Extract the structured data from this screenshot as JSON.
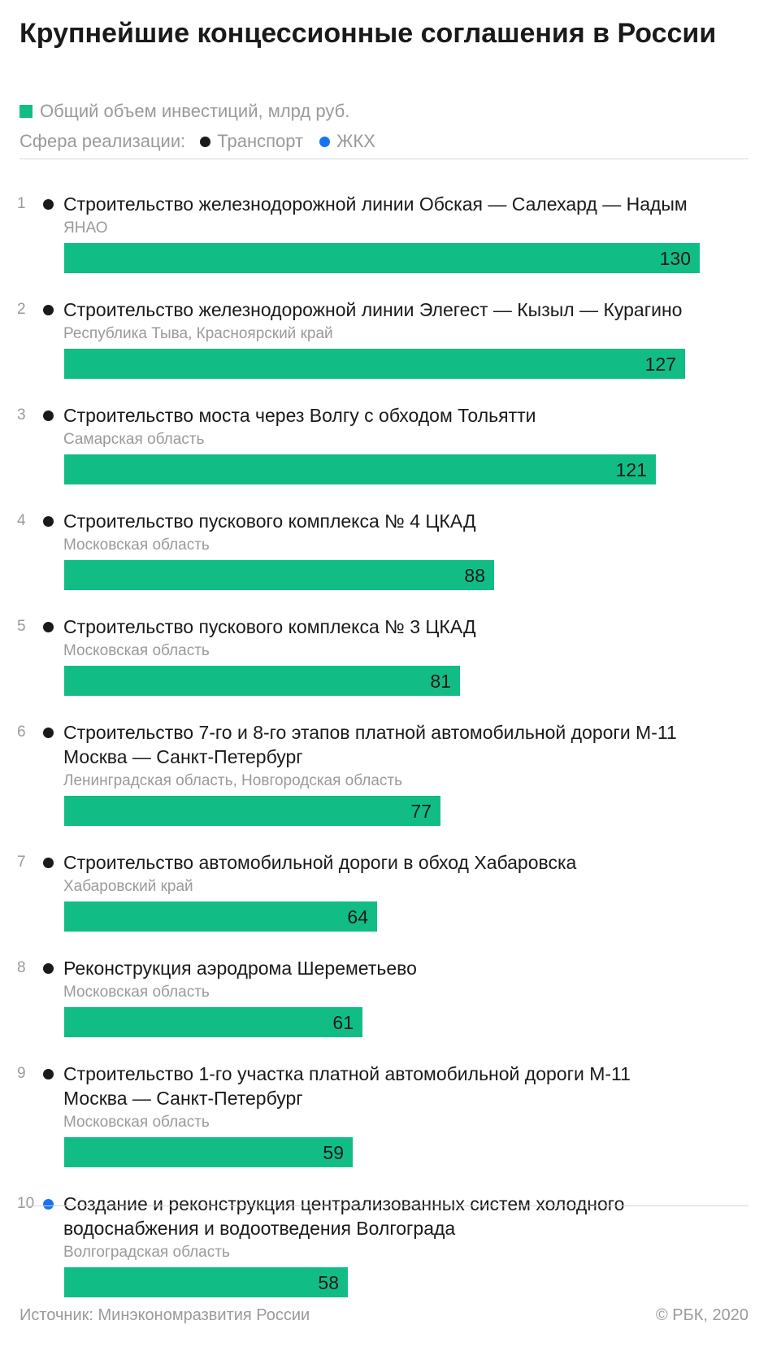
{
  "title": "Крупнейшие концессионные соглашения в России",
  "legend": {
    "measure": "Общий объем инвестиций, млрд руб.",
    "sphere_label": "Сфера реализации:",
    "categories": [
      {
        "label": "Транспорт",
        "color": "#1a1a1a"
      },
      {
        "label": "ЖКХ",
        "color": "#1a73f0"
      }
    ]
  },
  "bar_color": "#12bd85",
  "chart_data": {
    "type": "bar",
    "orientation": "horizontal",
    "value_label": "Общий объем инвестиций, млрд руб.",
    "items": [
      {
        "rank": "1",
        "name": "Строительство железнодорожной линии Обская — Салехард — Надым",
        "region": "ЯНАО",
        "value": 130,
        "sphere": "Транспорт"
      },
      {
        "rank": "2",
        "name": "Строительство железнодорожной линии Элегест — Кызыл — Курагино",
        "region": "Республика Тыва, Красноярский край",
        "value": 127,
        "sphere": "Транспорт"
      },
      {
        "rank": "3",
        "name": "Строительство моста через Волгу с обходом Тольятти",
        "region": "Самарская область",
        "value": 121,
        "sphere": "Транспорт"
      },
      {
        "rank": "4",
        "name": "Строительство пускового комплекса № 4 ЦКАД",
        "region": "Московская область",
        "value": 88,
        "sphere": "Транспорт"
      },
      {
        "rank": "5",
        "name": "Строительство пускового комплекса № 3 ЦКАД",
        "region": "Московская область",
        "value": 81,
        "sphere": "Транспорт"
      },
      {
        "rank": "6",
        "name": "Строительство 7-го и 8-го этапов платной автомобильной дороги М-11 Москва — Санкт-Петербург",
        "region": "Ленинградская область, Новгородская область",
        "value": 77,
        "sphere": "Транспорт"
      },
      {
        "rank": "7",
        "name": "Строительство автомобильной дороги в обход Хабаровска",
        "region": "Хабаровский край",
        "value": 64,
        "sphere": "Транспорт"
      },
      {
        "rank": "8",
        "name": "Реконструкция аэродрома Шереметьево",
        "region": "Московская область",
        "value": 61,
        "sphere": "Транспорт"
      },
      {
        "rank": "9",
        "name": "Строительство 1-го участка платной автомобильной дороги М-11 Москва — Санкт-Петербург",
        "region": "Московская область",
        "value": 59,
        "sphere": "Транспорт"
      },
      {
        "rank": "10",
        "name": "Создание и реконструкция централизованных систем холодного водоснабжения и водоотведения Волгограда",
        "region": "Волгоградская область",
        "value": 58,
        "sphere": "ЖКХ"
      }
    ]
  },
  "footer": {
    "source": "Источник: Минэкономразвития России",
    "copyright": "© РБК, 2020"
  }
}
